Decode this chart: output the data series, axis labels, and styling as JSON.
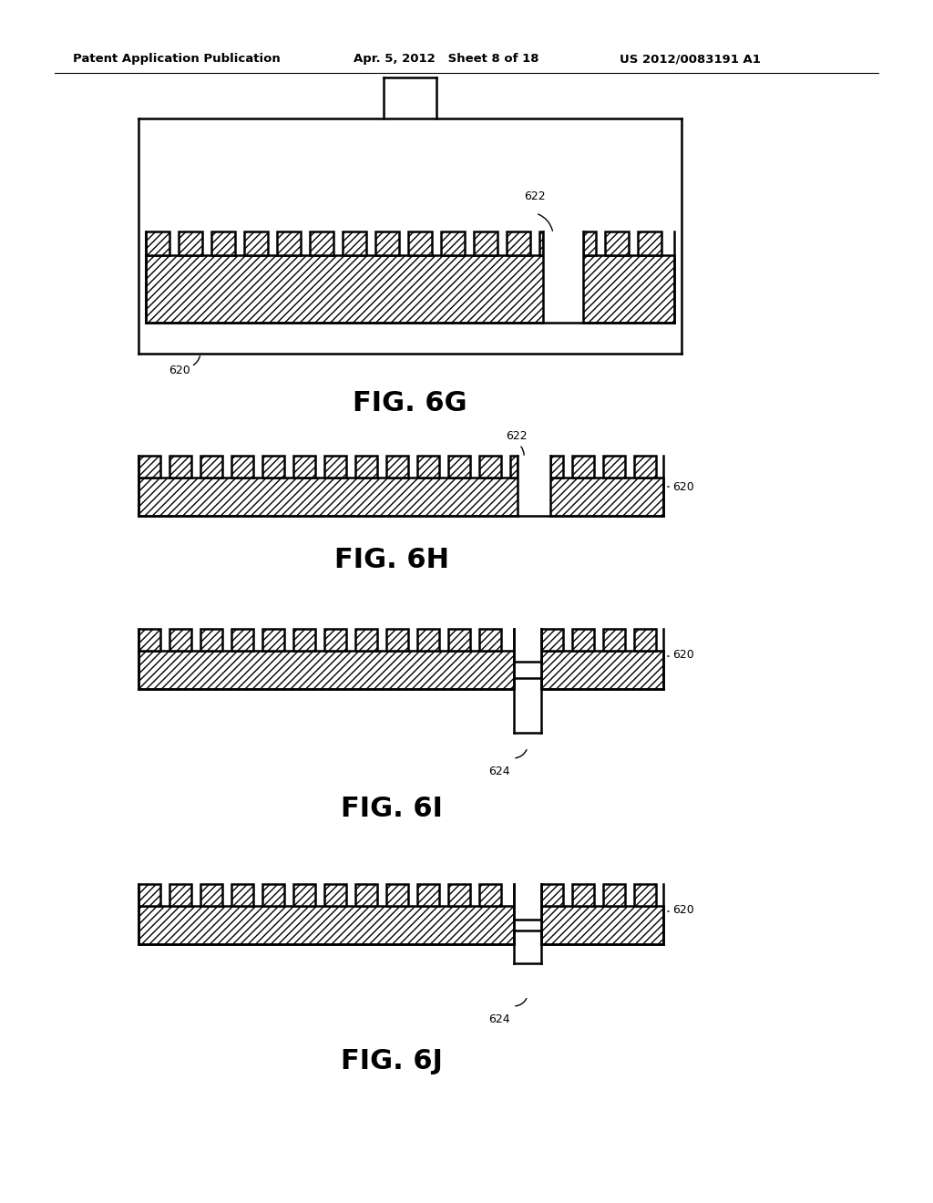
{
  "bg_color": "#ffffff",
  "header_left": "Patent Application Publication",
  "header_mid": "Apr. 5, 2012   Sheet 8 of 18",
  "header_right": "US 2012/0083191 A1",
  "fig_labels": [
    "FIG. 6G",
    "FIG. 6H",
    "FIG. 6I",
    "FIG. 6J"
  ],
  "label_620": "620",
  "label_622": "622",
  "label_624": "624",
  "line_color": "#000000"
}
